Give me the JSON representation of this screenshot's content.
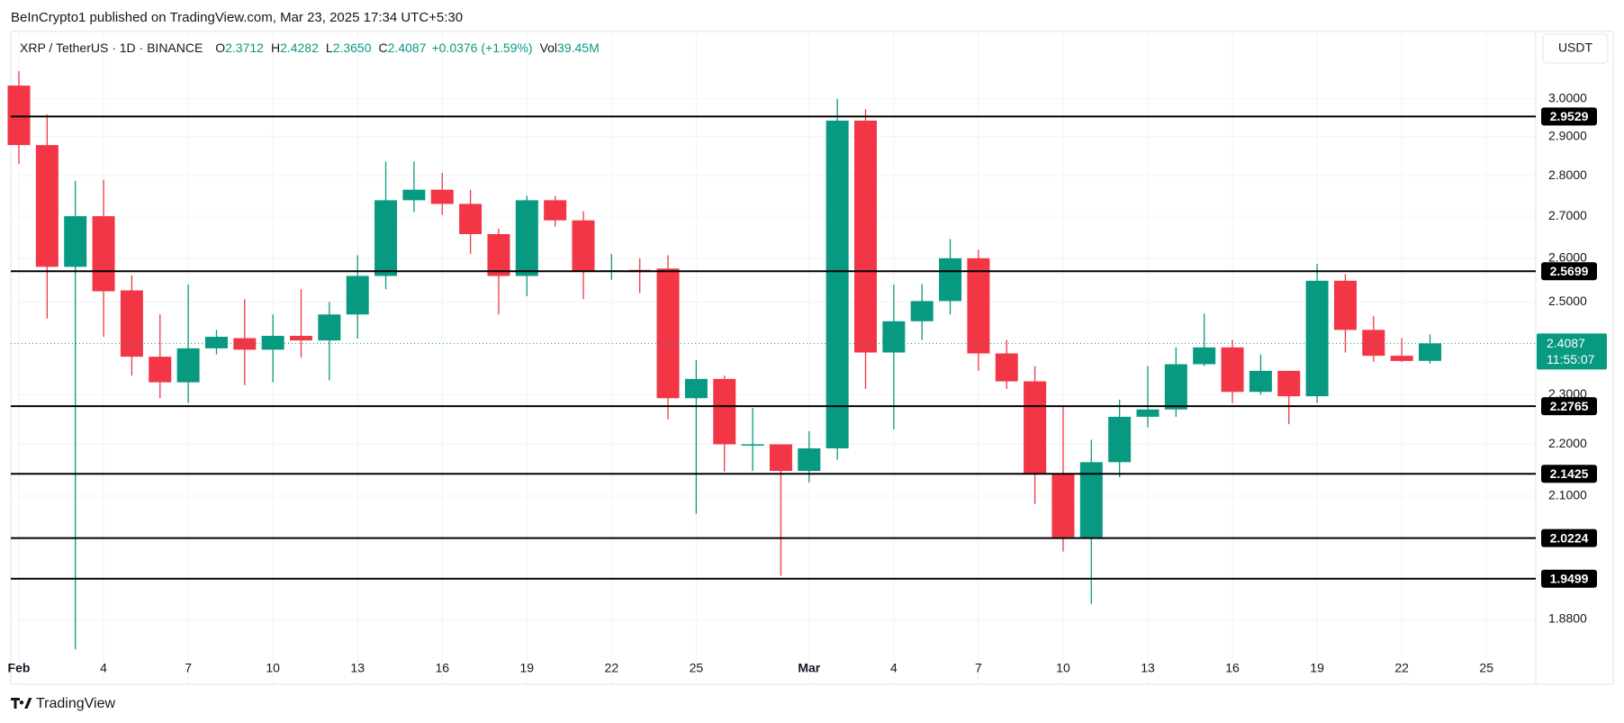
{
  "header": {
    "published": "BeInCrypto1 published on TradingView.com, Mar 23, 2025 17:34 UTC+5:30"
  },
  "chart_data": {
    "type": "candlestick",
    "title": "XRP / TetherUS · 1D · BINANCE",
    "legend": [
      {
        "label": "O",
        "value": "2.3712"
      },
      {
        "label": "H",
        "value": "2.4282"
      },
      {
        "label": "L",
        "value": "2.3650"
      },
      {
        "label": "C",
        "value": "2.4087"
      }
    ],
    "change": "+0.0376 (+1.59%)",
    "volume": {
      "label": "Vol",
      "value": "39.45M"
    },
    "currency": "USDT",
    "categories": [
      "Feb",
      null,
      null,
      "4",
      null,
      null,
      "7",
      null,
      null,
      "10",
      null,
      null,
      "13",
      null,
      null,
      "16",
      null,
      null,
      "19",
      null,
      null,
      "22",
      null,
      null,
      "25",
      null,
      null,
      null,
      "Mar",
      null,
      null,
      "4",
      null,
      null,
      "7",
      null,
      null,
      "10",
      null,
      null,
      "13",
      null,
      null,
      "16",
      null,
      null,
      "19",
      null,
      null,
      "22",
      null,
      null,
      "25"
    ],
    "open": [
      3.036,
      2.878,
      2.58,
      2.7,
      2.526,
      2.38,
      2.326,
      2.398,
      2.42,
      2.395,
      2.425,
      2.415,
      2.472,
      2.559,
      2.739,
      2.765,
      2.73,
      2.657,
      2.559,
      2.739,
      2.69,
      2.57,
      2.573,
      2.576,
      2.293,
      2.333,
      2.199,
      2.2,
      2.148,
      2.192,
      2.942,
      2.389,
      2.457,
      2.502,
      2.6,
      2.387,
      2.328,
      2.142,
      2.024,
      2.165,
      2.255,
      2.27,
      2.364,
      2.4,
      2.306,
      2.35,
      2.297,
      2.548,
      2.438,
      2.382,
      2.3712,
      null,
      null
    ],
    "high": [
      3.076,
      2.958,
      2.787,
      2.79,
      2.56,
      2.472,
      2.539,
      2.438,
      2.506,
      2.472,
      2.529,
      2.5,
      2.607,
      2.836,
      2.836,
      2.807,
      2.765,
      2.67,
      2.75,
      2.75,
      2.712,
      2.61,
      2.6,
      2.607,
      2.373,
      2.34,
      2.273,
      2.2,
      2.226,
      3.0,
      2.972,
      2.539,
      2.54,
      2.645,
      2.62,
      2.416,
      2.36,
      2.277,
      2.209,
      2.29,
      2.36,
      2.4,
      2.474,
      2.416,
      2.385,
      2.35,
      2.587,
      2.563,
      2.468,
      2.42,
      2.4282,
      null,
      null
    ],
    "low": [
      2.83,
      2.463,
      1.83,
      2.423,
      2.34,
      2.293,
      2.283,
      2.385,
      2.32,
      2.326,
      2.378,
      2.33,
      2.419,
      2.529,
      2.71,
      2.703,
      2.61,
      2.472,
      2.513,
      2.675,
      2.506,
      2.55,
      2.52,
      2.25,
      2.067,
      2.147,
      2.148,
      1.955,
      2.126,
      2.17,
      2.312,
      2.23,
      2.416,
      2.472,
      2.35,
      2.312,
      2.085,
      1.998,
      1.906,
      2.136,
      2.234,
      2.255,
      2.36,
      2.283,
      2.3,
      2.24,
      2.283,
      2.389,
      2.369,
      2.369,
      2.365,
      null,
      null
    ],
    "close": [
      2.878,
      2.58,
      2.7,
      2.524,
      2.38,
      2.326,
      2.398,
      2.423,
      2.395,
      2.425,
      2.415,
      2.472,
      2.559,
      2.739,
      2.765,
      2.73,
      2.657,
      2.559,
      2.739,
      2.69,
      2.57,
      2.572,
      2.568,
      2.293,
      2.333,
      2.2,
      2.2,
      2.148,
      2.192,
      2.942,
      2.389,
      2.457,
      2.502,
      2.6,
      2.387,
      2.328,
      2.142,
      2.024,
      2.165,
      2.255,
      2.27,
      2.364,
      2.4,
      2.306,
      2.35,
      2.297,
      2.548,
      2.438,
      2.382,
      2.371,
      2.4087,
      null,
      null
    ],
    "up_color": "#089981",
    "down_color": "#f23645",
    "log_scale": true,
    "ylim": [
      1.775,
      3.187
    ],
    "yticks": [
      {
        "value": 3.0,
        "label": "3.0000"
      },
      {
        "value": 2.9,
        "label": "2.9000"
      },
      {
        "value": 2.8,
        "label": "2.8000"
      },
      {
        "value": 2.7,
        "label": "2.7000"
      },
      {
        "value": 2.6,
        "label": "2.6000"
      },
      {
        "value": 2.5,
        "label": "2.5000"
      },
      {
        "value": 2.3,
        "label": "2.3000"
      },
      {
        "value": 2.2,
        "label": "2.2000"
      },
      {
        "value": 2.1,
        "label": "2.1000"
      },
      {
        "value": 1.88,
        "label": "1.8800"
      }
    ],
    "grid": true,
    "levels": [
      2.9529,
      2.5699,
      2.2765,
      2.1425,
      2.0224,
      1.9499
    ],
    "level_color": "#000000",
    "last_price": 2.4087,
    "countdown": "11:55:07"
  },
  "footer": {
    "brand": "TradingView"
  }
}
